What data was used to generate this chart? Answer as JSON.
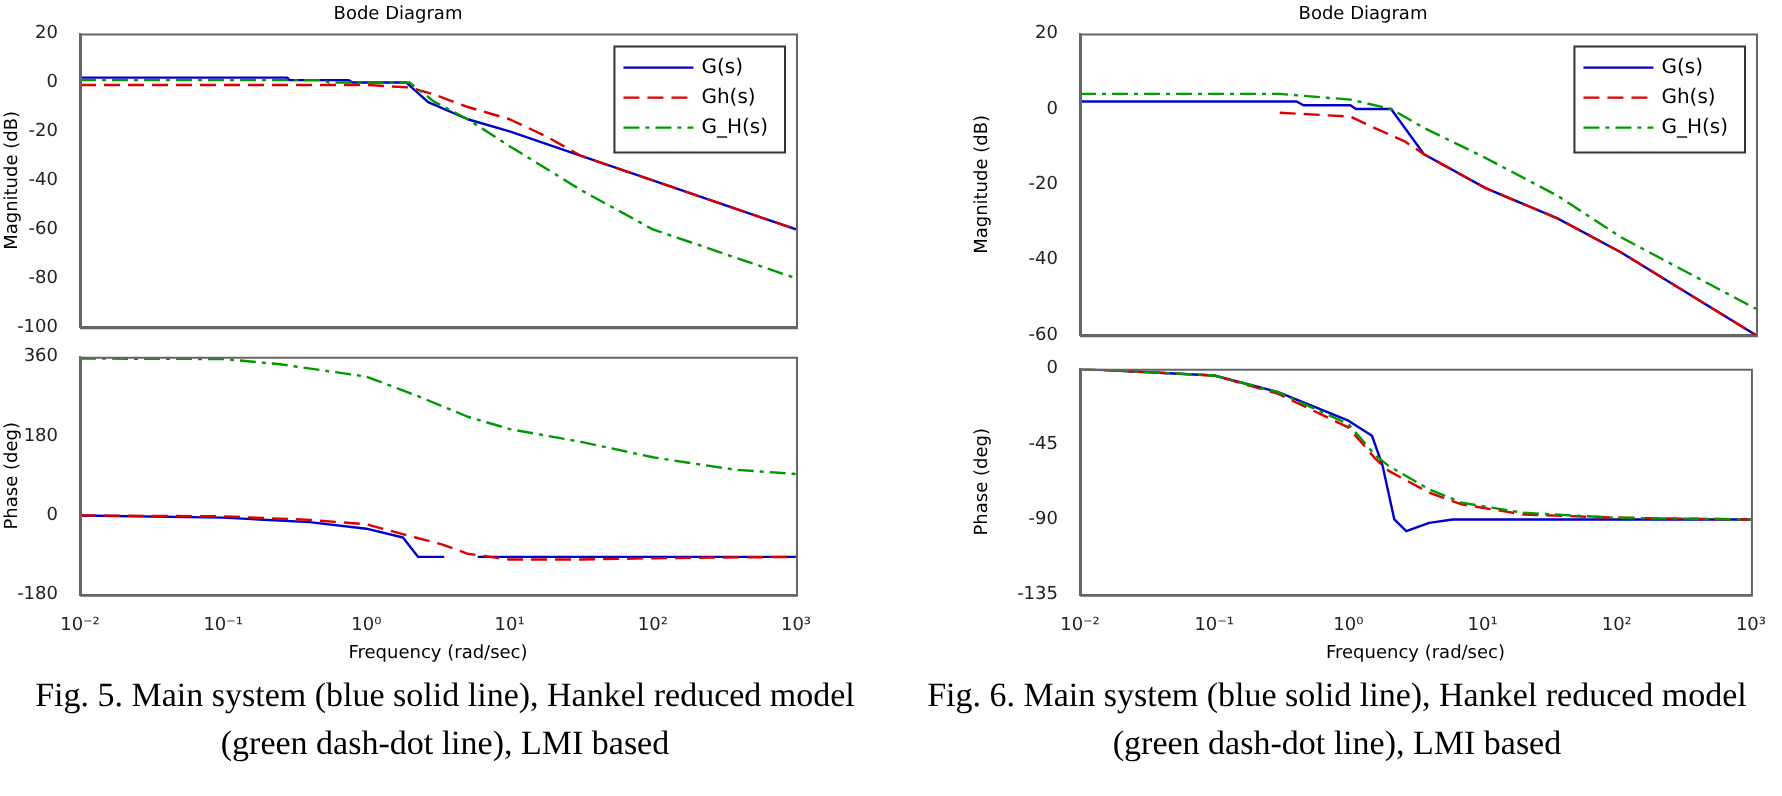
{
  "chart_data": [
    {
      "type": "line",
      "title": "Bode Diagram",
      "ylabel": "Magnitude (dB)",
      "xlim": [
        0.01,
        1000
      ],
      "log": "x",
      "ylim": [
        -100,
        20
      ],
      "yticks": [
        -100,
        -80,
        -60,
        -40,
        -20,
        0,
        20
      ],
      "tick_labels": "y",
      "legend": "top right",
      "series": [
        {
          "name": "G(s)",
          "color": "#0000cc",
          "line_style": "solid",
          "x": [
            0.01,
            0.28,
            0.29,
            0.75,
            0.8,
            1.9,
            2.7,
            5.1,
            10,
            31.6,
            100,
            1000
          ],
          "values": [
            2,
            2,
            1,
            1,
            0,
            0,
            -8,
            -15,
            -20,
            -30,
            -40,
            -60
          ]
        },
        {
          "name": "Gh(s)",
          "color": "#dd0000",
          "line_style": "dashed",
          "x": [
            0.01,
            1,
            2,
            3,
            5.1,
            10,
            18,
            31.6,
            100,
            1000
          ],
          "values": [
            -1,
            -1,
            -2,
            -5,
            -10,
            -15,
            -22,
            -30,
            -40,
            -60
          ]
        },
        {
          "name": "G_H(s)",
          "color": "#009900",
          "line_style": "dashdot",
          "x": [
            0.01,
            0.5,
            0.55,
            2,
            3,
            5.1,
            10,
            31.6,
            100,
            1000
          ],
          "values": [
            1,
            1,
            0,
            0,
            -8,
            -15,
            -26,
            -44,
            -60,
            -80
          ]
        }
      ]
    },
    {
      "type": "line",
      "ylabel": "Phase (deg)",
      "xlabel": "Frequency (rad/sec)",
      "xlim": [
        0.01,
        1000
      ],
      "log": "x",
      "xticks": [
        {
          "value": 0.01,
          "label": "10⁻²"
        },
        {
          "value": 0.1,
          "label": "10⁻¹"
        },
        {
          "value": 1,
          "label": "10⁰"
        },
        {
          "value": 10,
          "label": "10¹"
        },
        {
          "value": 100,
          "label": "10²"
        },
        {
          "value": 1000,
          "label": "10³"
        }
      ],
      "ylim": [
        -180,
        360
      ],
      "yticks": [
        -180,
        0,
        180,
        360
      ],
      "annotations": [
        "Fig. 5. Main system (blue solid line), Hankel reduced model (green dash-dot line), LMI based"
      ],
      "series": [
        {
          "color": "#0000cc",
          "line_style": "solid",
          "x": [
            0.01,
            0.1,
            0.4,
            1,
            1.8,
            2.3,
            3.5,
            4.5,
            6,
            1000
          ],
          "values": [
            0,
            -5,
            -15,
            -30,
            -50,
            -94,
            -94,
            null,
            -94,
            -94
          ]
        },
        {
          "color": "#dd0000",
          "line_style": "dashed",
          "x": [
            0.01,
            0.1,
            0.4,
            1,
            2.2,
            3.4,
            5.1,
            10,
            31.6,
            100,
            1000
          ],
          "values": [
            0,
            -2,
            -10,
            -20,
            -50,
            -66,
            -87,
            -100,
            -100,
            -97,
            -94
          ]
        },
        {
          "color": "#009900",
          "line_style": "dashdot",
          "x": [
            0.01,
            0.1,
            0.25,
            1,
            2.2,
            5.1,
            10,
            31.6,
            100,
            370,
            1000
          ],
          "values": [
            356,
            355,
            343,
            315,
            273,
            224,
            196,
            167,
            132,
            104,
            94
          ]
        }
      ]
    },
    {
      "type": "line",
      "title": "Bode Diagram",
      "ylabel": "Magnitude (dB)",
      "xlim": [
        0.01,
        1000
      ],
      "log": "x",
      "ylim": [
        -60,
        20
      ],
      "yticks": [
        -60,
        -40,
        -20,
        0,
        20
      ],
      "tick_labels": "y",
      "legend": "top right",
      "series": [
        {
          "name": "G(s)",
          "color": "#0000cc",
          "line_style": "solid",
          "x": [
            0.01,
            0.4,
            0.45,
            1,
            1.1,
            2,
            3.5,
            10,
            34,
            100,
            1000
          ],
          "values": [
            2,
            2,
            1,
            1,
            0,
            0,
            -12,
            -21,
            -29,
            -38,
            -60
          ]
        },
        {
          "name": "Gh(s)",
          "color": "#dd0000",
          "line_style": "dashed",
          "x": [
            0.3,
            1,
            1.4,
            2.5,
            3.5,
            10,
            34,
            100,
            1000
          ],
          "values": [
            -1,
            -2,
            -4.5,
            -8.5,
            -12,
            -21,
            -29,
            -38,
            -60
          ]
        },
        {
          "name": "G_H(s)",
          "color": "#009900",
          "line_style": "dashdot",
          "x": [
            0.01,
            0.3,
            1,
            2,
            3.5,
            10,
            34,
            100,
            1000
          ],
          "values": [
            4,
            4,
            2.5,
            0,
            -5,
            -13,
            -23,
            -34,
            -53
          ]
        }
      ]
    },
    {
      "type": "line",
      "ylabel": "Phase (deg)",
      "xlabel": "Frequency (rad/sec)",
      "xlim": [
        0.01,
        1000
      ],
      "log": "x",
      "xticks": [
        {
          "value": 0.01,
          "label": "10⁻²"
        },
        {
          "value": 0.1,
          "label": "10⁻¹"
        },
        {
          "value": 1,
          "label": "10⁰"
        },
        {
          "value": 10,
          "label": "10¹"
        },
        {
          "value": 100,
          "label": "10²"
        },
        {
          "value": 1000,
          "label": "10³"
        }
      ],
      "ylim": [
        -135,
        0
      ],
      "yticks": [
        -135,
        -90,
        -45,
        0
      ],
      "annotations": [
        "Fig. 6. Main system (blue solid line), Hankel reduced model (green dash-dot line), LMI based"
      ],
      "series": [
        {
          "color": "#0000cc",
          "line_style": "solid",
          "x": [
            0.01,
            0.1,
            0.3,
            1,
            1.5,
            1.8,
            2.2,
            2.7,
            4,
            6,
            1000
          ],
          "values": [
            0,
            -4,
            -14,
            -31,
            -40,
            -58,
            -90,
            -97,
            -92,
            -90,
            -90
          ]
        },
        {
          "color": "#dd0000",
          "line_style": "dashed",
          "x": [
            0.01,
            0.1,
            0.3,
            1,
            1.6,
            2,
            4,
            7,
            20,
            100,
            1000
          ],
          "values": [
            0,
            -4,
            -15,
            -35,
            -54,
            -61,
            -74,
            -81,
            -87,
            -89,
            -90
          ]
        },
        {
          "color": "#009900",
          "line_style": "dashdot",
          "x": [
            0.01,
            0.1,
            0.3,
            1,
            1.6,
            2,
            4,
            7,
            20,
            100,
            1000
          ],
          "values": [
            0,
            -4,
            -14,
            -33,
            -52,
            -58,
            -72,
            -80,
            -86,
            -89,
            -90
          ]
        }
      ]
    }
  ]
}
